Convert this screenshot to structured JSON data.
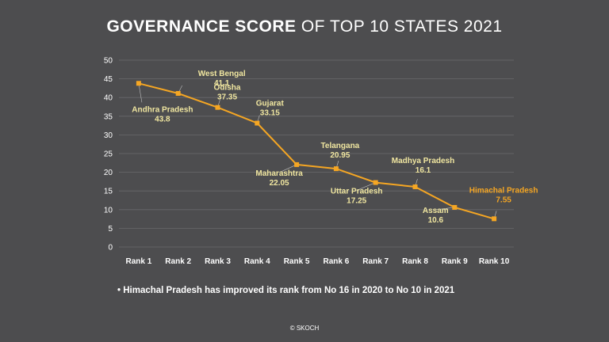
{
  "title": {
    "bold": "GOVERNANCE SCORE",
    "rest": " OF TOP 10 STATES 2021"
  },
  "note": "• Himachal Pradesh has improved its rank from No 16 in 2020 to No 10 in 2021",
  "copyright": "© SKOCH",
  "colors": {
    "background": "#4d4d4f",
    "line": "#f5a623",
    "label": "#f0e6a0",
    "highlight": "#f5a623",
    "grid": "#6a6a6c"
  },
  "chart_data": {
    "type": "line",
    "title": "GOVERNANCE SCORE OF TOP 10 STATES 2021",
    "xlabel": "",
    "ylabel": "",
    "ylim": [
      0,
      50
    ],
    "yticks": [
      0,
      5,
      10,
      15,
      20,
      25,
      30,
      35,
      40,
      45,
      50
    ],
    "grid": true,
    "categories": [
      "Rank 1",
      "Rank 2",
      "Rank 3",
      "Rank 4",
      "Rank 5",
      "Rank 6",
      "Rank 7",
      "Rank 8",
      "Rank 9",
      "Rank 10"
    ],
    "series": [
      {
        "values": [
          43.8,
          41.1,
          37.35,
          33.15,
          22.05,
          20.95,
          17.25,
          16.1,
          10.6,
          7.55
        ],
        "point_labels": [
          {
            "name": "Andhra Pradesh",
            "value": "43.8"
          },
          {
            "name": "West Bengal",
            "value": "41.1"
          },
          {
            "name": "Odisha",
            "value": "37.35"
          },
          {
            "name": "Gujarat",
            "value": "33.15"
          },
          {
            "name": "Maharashtra",
            "value": "22.05"
          },
          {
            "name": "Telangana",
            "value": "20.95"
          },
          {
            "name": "Uttar Pradesh",
            "value": "17.25"
          },
          {
            "name": "Madhya Pradesh",
            "value": "16.1"
          },
          {
            "name": "Assam",
            "value": "10.6"
          },
          {
            "name": "Himachal Pradesh",
            "value": "7.55"
          }
        ]
      }
    ]
  }
}
